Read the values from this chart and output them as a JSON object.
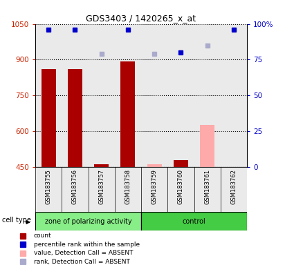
{
  "title": "GDS3403 / 1420265_x_at",
  "samples": [
    "GSM183755",
    "GSM183756",
    "GSM183757",
    "GSM183758",
    "GSM183759",
    "GSM183760",
    "GSM183761",
    "GSM183762"
  ],
  "groups": [
    "zone of polarizing activity",
    "zone of polarizing activity",
    "zone of polarizing activity",
    "zone of polarizing activity",
    "control",
    "control",
    "control",
    "control"
  ],
  "count_values": [
    860,
    862,
    460,
    893,
    null,
    478,
    null,
    null
  ],
  "count_absent_values": [
    null,
    null,
    null,
    null,
    462,
    null,
    627,
    null
  ],
  "rank_values": [
    96,
    96,
    null,
    96,
    null,
    80,
    null,
    96
  ],
  "rank_absent_values": [
    null,
    null,
    79,
    null,
    79,
    null,
    85,
    null
  ],
  "ylim_left": [
    450,
    1050
  ],
  "ylim_right": [
    0,
    100
  ],
  "yticks_left": [
    450,
    600,
    750,
    900,
    1050
  ],
  "yticks_right": [
    0,
    25,
    50,
    75,
    100
  ],
  "count_color": "#aa0000",
  "count_absent_color": "#ffaaaa",
  "rank_color": "#0000cc",
  "rank_absent_color": "#aaaacc",
  "group1_color": "#88ee88",
  "group2_color": "#44cc44",
  "bar_width": 0.55,
  "group1_label": "zone of polarizing activity",
  "group2_label": "control",
  "cell_type_label": "cell type",
  "legend_items": [
    {
      "label": "count",
      "color": "#aa0000"
    },
    {
      "label": "percentile rank within the sample",
      "color": "#0000cc"
    },
    {
      "label": "value, Detection Call = ABSENT",
      "color": "#ffaaaa"
    },
    {
      "label": "rank, Detection Call = ABSENT",
      "color": "#aaaacc"
    }
  ]
}
